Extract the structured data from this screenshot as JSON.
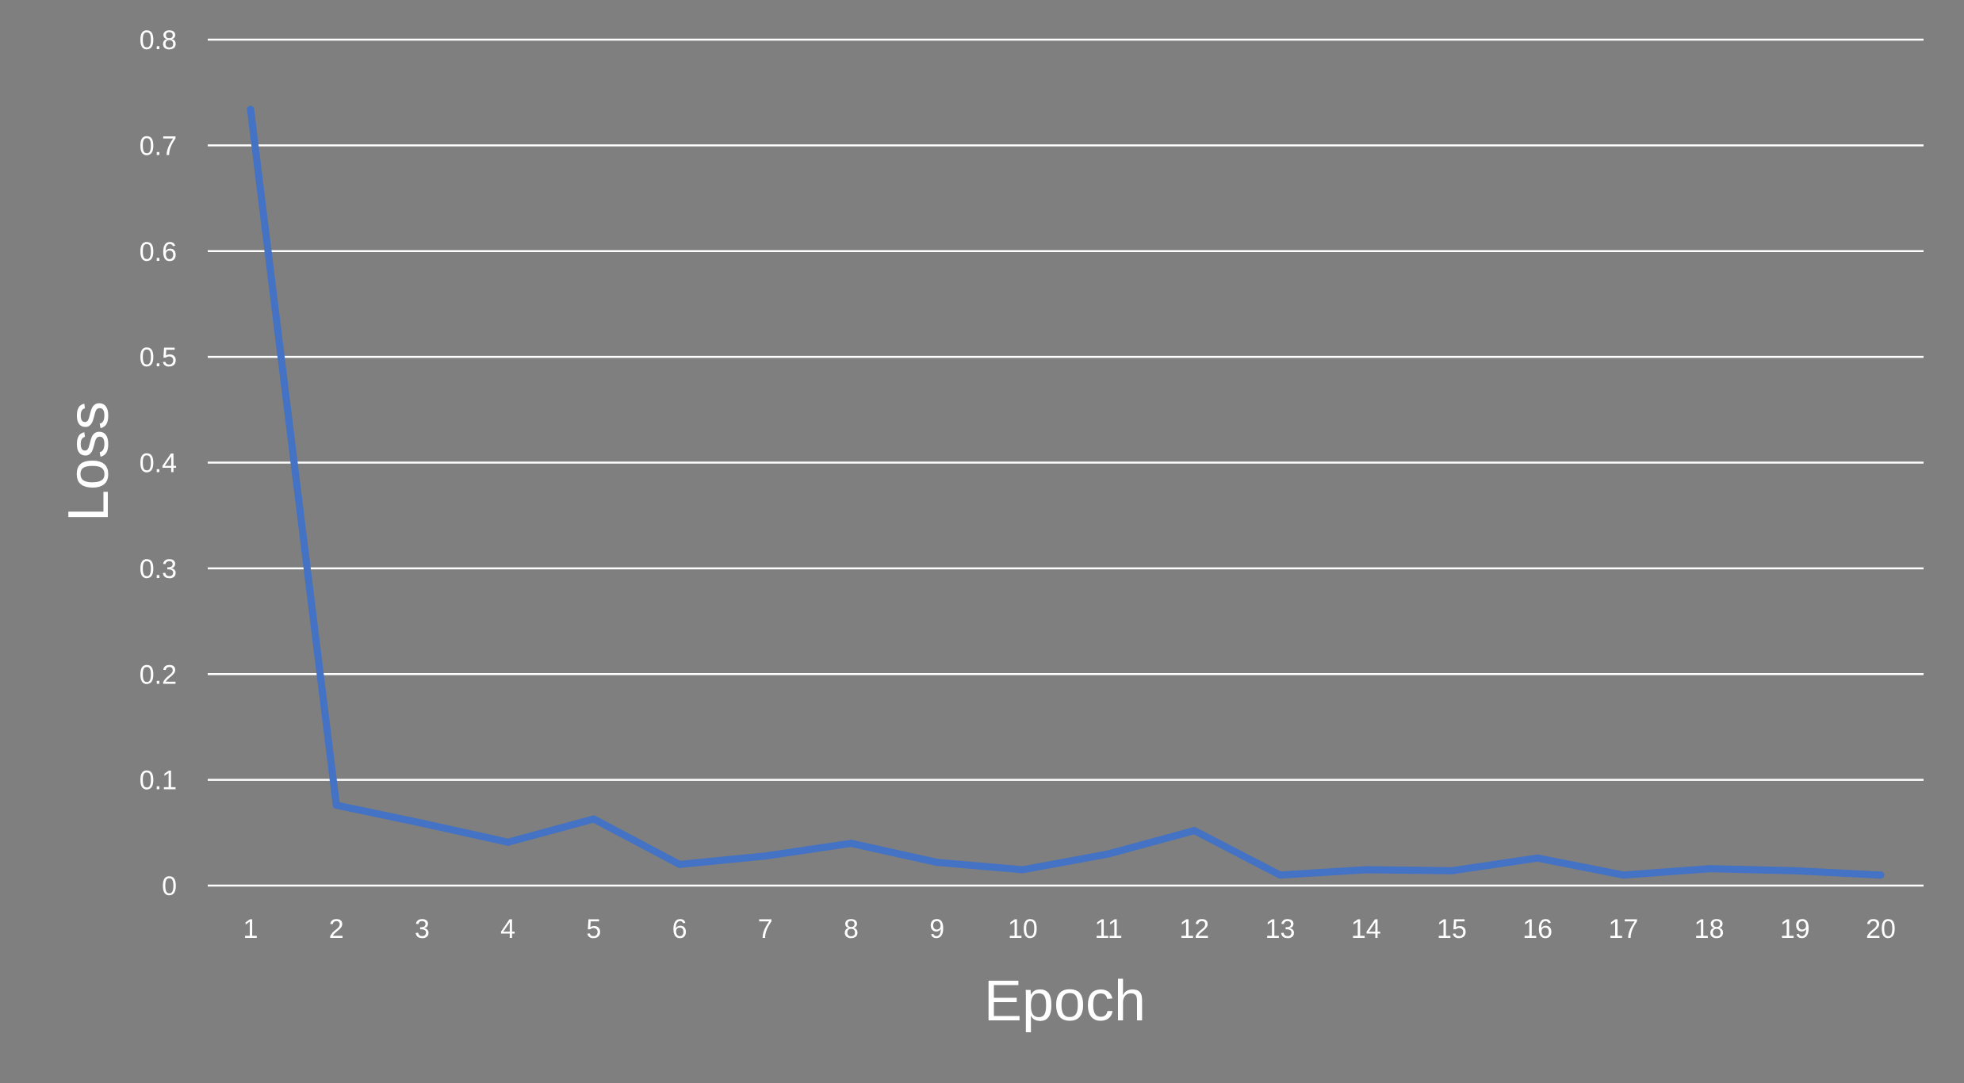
{
  "chart_data": {
    "type": "line",
    "title": "",
    "xlabel": "Epoch",
    "ylabel": "Loss",
    "x": [
      1,
      2,
      3,
      4,
      5,
      6,
      7,
      8,
      9,
      10,
      11,
      12,
      13,
      14,
      15,
      16,
      17,
      18,
      19,
      20
    ],
    "series": [
      {
        "values": [
          0.734,
          0.076,
          0.059,
          0.041,
          0.063,
          0.02,
          0.028,
          0.04,
          0.022,
          0.015,
          0.03,
          0.052,
          0.01,
          0.015,
          0.014,
          0.026,
          0.01,
          0.016,
          0.014,
          0.01
        ]
      }
    ],
    "ylim": [
      0,
      0.8
    ],
    "yticks": [
      "0",
      "0.1",
      "0.2",
      "0.3",
      "0.4",
      "0.5",
      "0.6",
      "0.7",
      "0.8"
    ],
    "xticks": [
      "1",
      "2",
      "3",
      "4",
      "5",
      "6",
      "7",
      "8",
      "9",
      "10",
      "11",
      "12",
      "13",
      "14",
      "15",
      "16",
      "17",
      "18",
      "19",
      "20"
    ],
    "grid": true,
    "legend": "none",
    "colors": {
      "background": "#7f7f7f",
      "line": "#4472c4",
      "gridline": "#ffffff",
      "text": "#ffffff"
    }
  }
}
